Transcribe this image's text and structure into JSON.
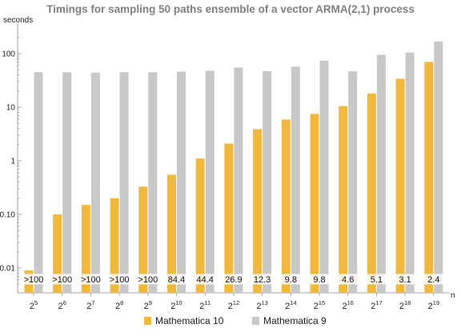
{
  "chart_data": {
    "type": "bar",
    "title": "Timings for sampling 50 paths ensemble of a vector ARMA(2,1) process",
    "ylabel": "seconds",
    "xlabel": "n",
    "yscale": "log",
    "ylim": [
      0.005,
      200
    ],
    "yticks": [
      {
        "value": 0.01,
        "label": "0.01"
      },
      {
        "value": 0.1,
        "label": "0.10"
      },
      {
        "value": 1,
        "label": "1"
      },
      {
        "value": 10,
        "label": "10"
      },
      {
        "value": 100,
        "label": "100"
      }
    ],
    "categories": [
      {
        "base": "2",
        "exp": "5"
      },
      {
        "base": "2",
        "exp": "6"
      },
      {
        "base": "2",
        "exp": "7"
      },
      {
        "base": "2",
        "exp": "8"
      },
      {
        "base": "2",
        "exp": "9"
      },
      {
        "base": "2",
        "exp": "10"
      },
      {
        "base": "2",
        "exp": "11"
      },
      {
        "base": "2",
        "exp": "12"
      },
      {
        "base": "2",
        "exp": "13"
      },
      {
        "base": "2",
        "exp": "14"
      },
      {
        "base": "2",
        "exp": "15"
      },
      {
        "base": "2",
        "exp": "16"
      },
      {
        "base": "2",
        "exp": "17"
      },
      {
        "base": "2",
        "exp": "18"
      },
      {
        "base": "2",
        "exp": "19"
      }
    ],
    "series": [
      {
        "name": "Mathematica 10",
        "color": "#f0b93e",
        "values": [
          0.009,
          0.1,
          0.15,
          0.2,
          0.33,
          0.55,
          1.1,
          2.1,
          3.9,
          5.9,
          7.5,
          10.5,
          18,
          34,
          70
        ]
      },
      {
        "name": "Mathematica 9",
        "color": "#c8c8c8",
        "values": [
          45,
          45,
          44,
          45,
          45,
          46,
          48,
          55,
          47,
          57,
          74,
          47,
          95,
          105,
          168
        ]
      }
    ],
    "bar_labels": [
      ">100",
      ">100",
      ">100",
      ">100",
      ">100",
      "84.4",
      "44.4",
      "26.9",
      "12.3",
      "9.8",
      "9.8",
      "4.6",
      "5.1",
      "3.1",
      "2.4"
    ],
    "legend_position": "bottom",
    "grid": false
  }
}
